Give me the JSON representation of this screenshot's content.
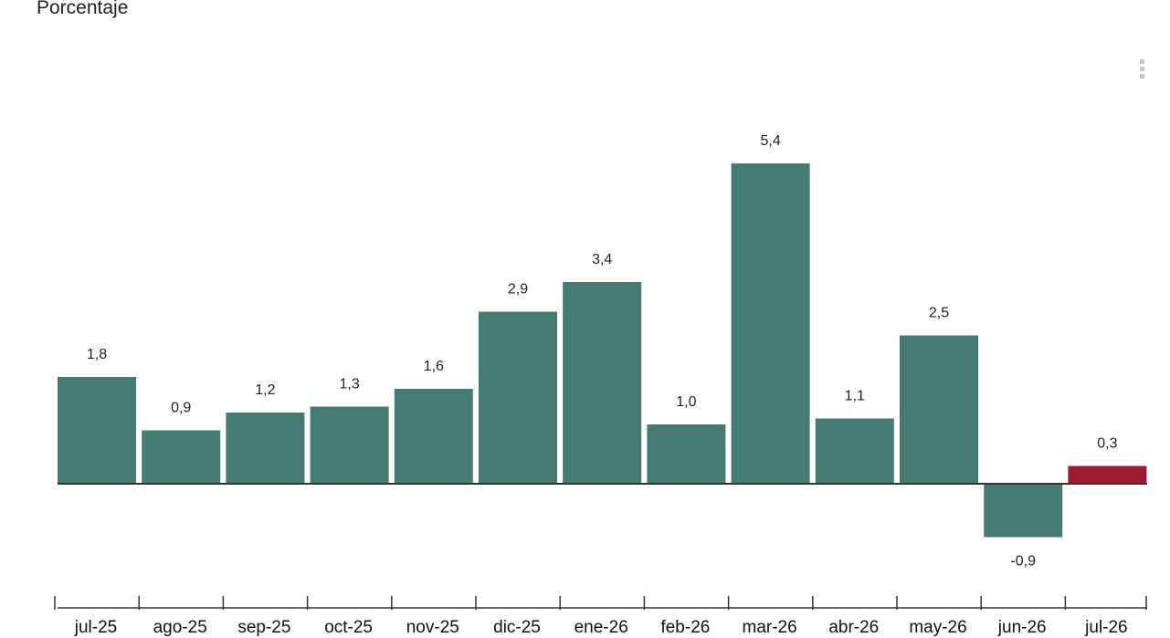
{
  "chart_data": {
    "type": "bar",
    "ylabel": "Porcentaje",
    "categories": [
      "jul-25",
      "ago-25",
      "sep-25",
      "oct-25",
      "nov-25",
      "dic-25",
      "ene-26",
      "feb-26",
      "mar-26",
      "abr-26",
      "may-26",
      "jun-26",
      "jul-26"
    ],
    "values": [
      1.8,
      0.9,
      1.2,
      1.3,
      1.6,
      2.9,
      3.4,
      1.0,
      5.4,
      1.1,
      2.5,
      -0.9,
      0.3
    ],
    "value_labels": [
      "1,8",
      "0,9",
      "1,2",
      "1,3",
      "1,6",
      "2,9",
      "3,4",
      "1,0",
      "5,4",
      "1,1",
      "2,5",
      "-0,9",
      "0,3"
    ],
    "colors": {
      "bar": "#457b73",
      "highlight": "#9b1b30",
      "axis": "#333333"
    },
    "highlight_index": 12,
    "grid": false,
    "legend": "none"
  },
  "menu": {
    "icon": "vertical-dots-icon"
  }
}
